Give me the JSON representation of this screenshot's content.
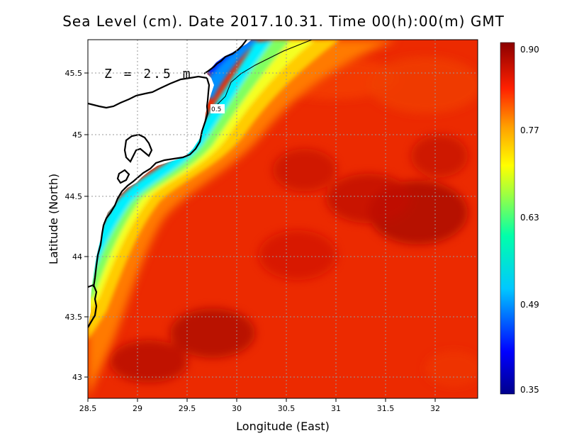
{
  "map": {
    "title": "Sea Level (cm). Date 2017.10.31. Time 00(h):00(m) GMT",
    "annotation": "Z = 2.5 m",
    "contour_label": "0.5",
    "x_axis_title": "Longitude (East)",
    "y_axis_title": "Latitude (North)",
    "x_ticks": [
      "28.5",
      "29",
      "29.5",
      "30",
      "30.5",
      "31",
      "31.5",
      "32"
    ],
    "y_ticks": [
      "45.5",
      "45",
      "44.5",
      "44",
      "43.5",
      "43"
    ],
    "colorbar_ticks": [
      "0.90",
      "0.77",
      "0.63",
      "0.49",
      "0.35"
    ],
    "colors": {
      "high": "#8b0000",
      "mid_high": "#ff3a00",
      "mid": "#ffff00",
      "mid_low": "#00ffff",
      "low": "#0000a0",
      "land": "#ffffff",
      "coast": "#000000",
      "grid": "#9a9a9a"
    }
  }
}
